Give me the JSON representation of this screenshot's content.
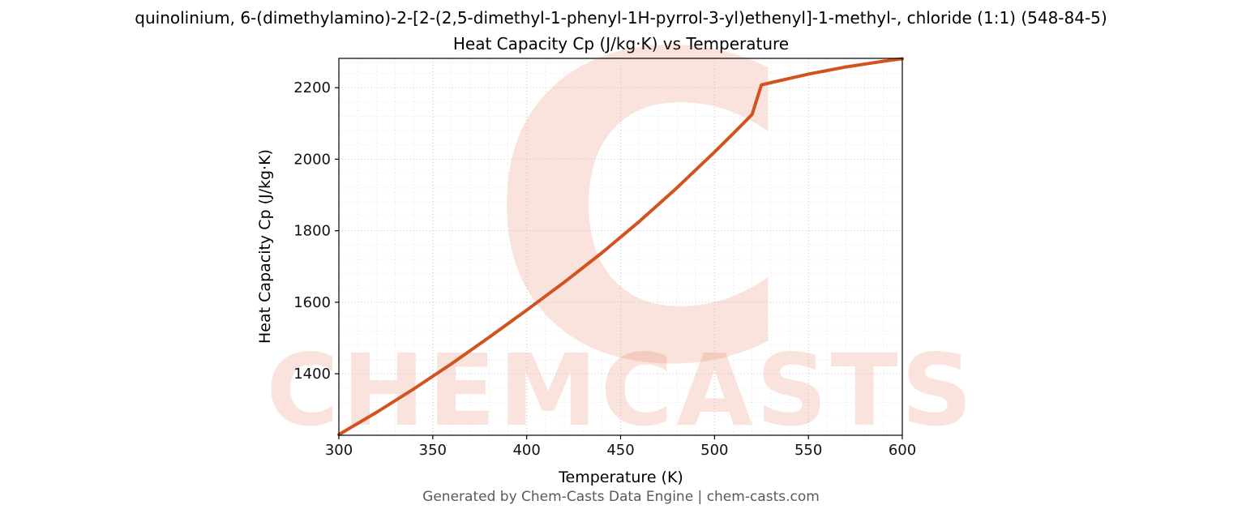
{
  "chart_data": {
    "type": "line",
    "title": "quinolinium, 6-(dimethylamino)-2-[2-(2,5-dimethyl-1-phenyl-1H-pyrrol-3-yl)ethenyl]-1-methyl-, chloride (1:1) (548-84-5)",
    "subtitle": "Heat Capacity Cp (J/kg·K) vs Temperature",
    "xlabel": "Temperature (K)",
    "ylabel": "Heat Capacity Cp (J/kg·K)",
    "xlim": [
      300,
      600
    ],
    "ylim": [
      1228,
      2282
    ],
    "xticks": [
      300,
      350,
      400,
      450,
      500,
      550,
      600
    ],
    "yticks": [
      1400,
      1600,
      1800,
      2000,
      2200
    ],
    "grid": true,
    "legend": false,
    "series": [
      {
        "name": "Heat Capacity Cp",
        "color": "#d2531e",
        "x": [
          300,
          320,
          340,
          360,
          380,
          400,
          420,
          440,
          460,
          480,
          500,
          510,
          520,
          525,
          530,
          540,
          550,
          560,
          570,
          580,
          590,
          600
        ],
        "y": [
          1230,
          1292,
          1358,
          1428,
          1502,
          1578,
          1656,
          1738,
          1826,
          1920,
          2020,
          2072,
          2125,
          2208,
          2214,
          2226,
          2238,
          2248,
          2258,
          2266,
          2274,
          2281
        ]
      }
    ]
  },
  "watermark": {
    "text": "CHEMCASTS",
    "logo_letter": "C",
    "color": "#e0572a"
  },
  "footer": {
    "text": "Generated by Chem-Casts Data Engine | chem-casts.com"
  }
}
